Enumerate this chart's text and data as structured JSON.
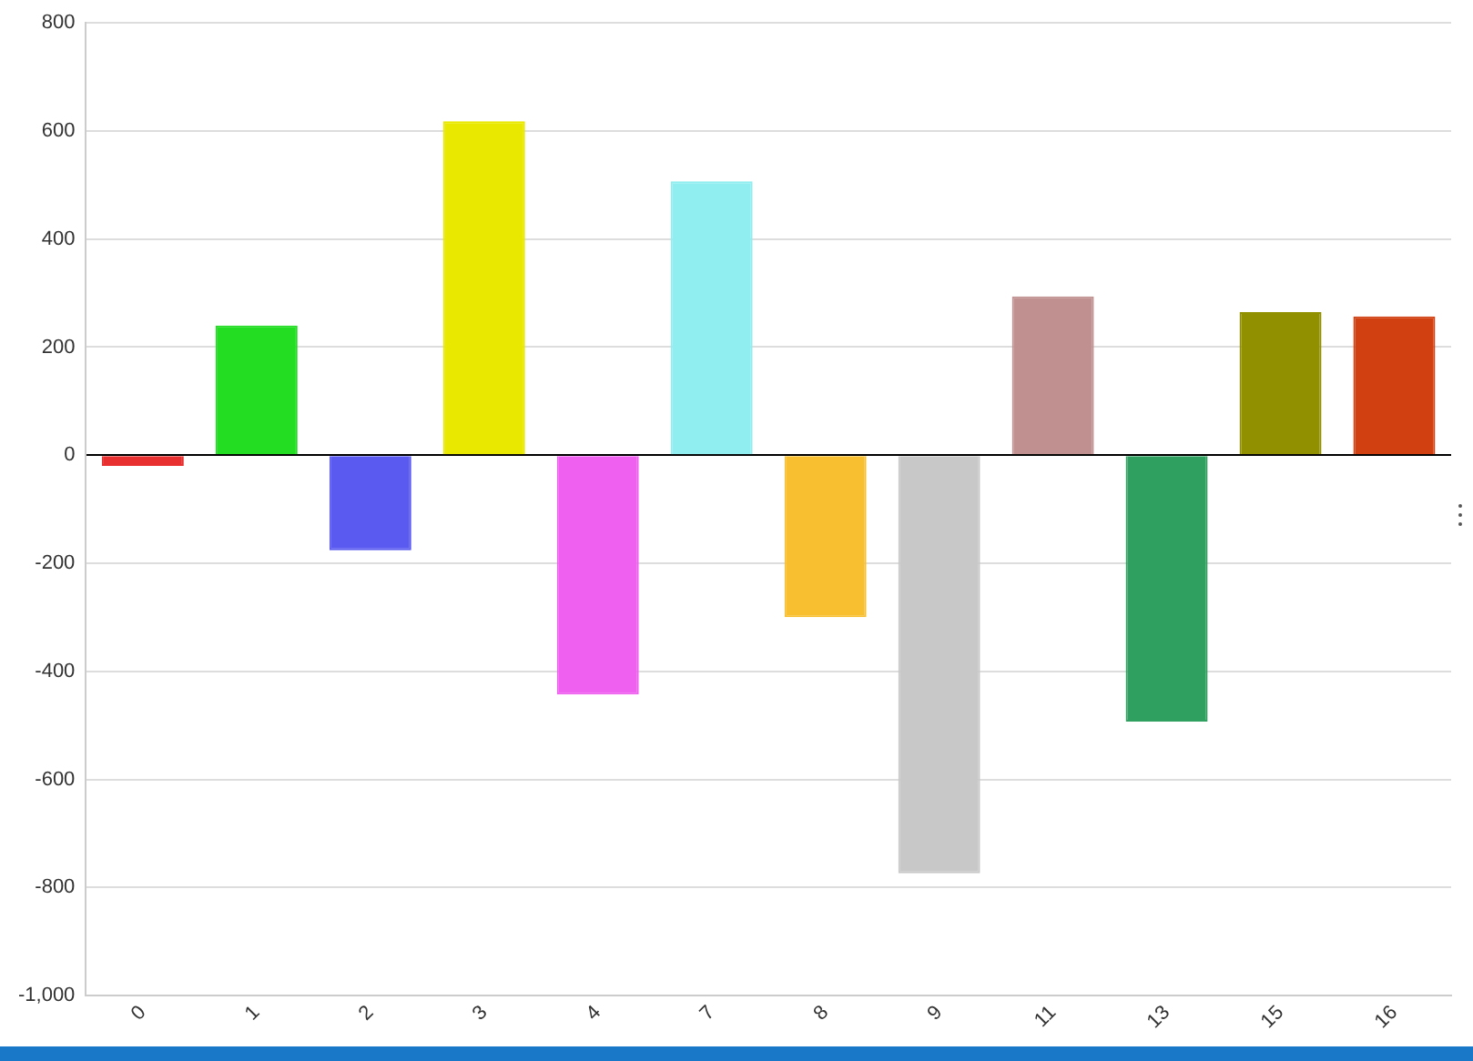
{
  "chart_data": {
    "type": "bar",
    "categories": [
      "0",
      "1",
      "2",
      "3",
      "4",
      "7",
      "8",
      "9",
      "11",
      "13",
      "15",
      "16"
    ],
    "values": [
      -20,
      240,
      -176,
      618,
      -443,
      507,
      -300,
      -774,
      294,
      -493,
      265,
      257
    ],
    "colors": [
      "#e83030",
      "#22dd22",
      "#5a5af0",
      "#e8e800",
      "#f060f0",
      "#90eef0",
      "#f8c030",
      "#c8c8c8",
      "#c09090",
      "#30a060",
      "#909000",
      "#d04010"
    ],
    "ylim": [
      -1000,
      800
    ],
    "yticks": [
      {
        "value": -1000,
        "label": "-1,000"
      },
      -800,
      -600,
      -400,
      -200,
      0,
      200,
      400,
      600,
      800
    ],
    "grid": "y"
  }
}
